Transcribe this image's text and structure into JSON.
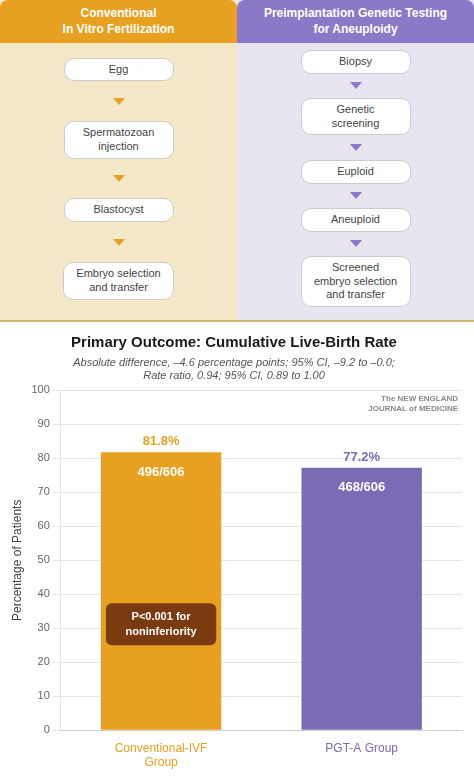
{
  "illustration": {
    "panels": [
      {
        "title": "Conventional\nIn Vitro Fertilization",
        "color": "#E8A020",
        "background": "#F5E8C8",
        "steps": [
          "Egg",
          "Spermatozoan\ninjection",
          "Blastocyst",
          "Embryo selection\nand transfer"
        ]
      },
      {
        "title": "Preimplantation Genetic Testing\nfor Aneuploidy",
        "color": "#8B78C8",
        "background": "#E8E4F0",
        "steps": [
          "Biopsy",
          "Genetic\nscreening",
          "Euploid",
          "Aneuploid",
          "Screened\nembryo selection\nand transfer"
        ]
      }
    ]
  },
  "chart_data": {
    "type": "bar",
    "title": "Primary Outcome: Cumulative Live-Birth Rate",
    "subtitle": [
      "Absolute difference, –4.6 percentage points; 95% CI, –9.2 to –0.0;",
      "Rate ratio, 0.94; 95% CI, 0.89 to 1.00"
    ],
    "categories": [
      "Conventional-IVF\nGroup",
      "PGT-A Group"
    ],
    "values": [
      81.8,
      77.2
    ],
    "value_labels": [
      "81.8%",
      "77.2%"
    ],
    "fractions": [
      "496/606",
      "468/606"
    ],
    "colors": [
      "#E8A020",
      "#7B6BB5"
    ],
    "data_labels": true,
    "ylabel": "Percentage of Patients",
    "ylim": [
      0,
      100
    ],
    "yticks": [
      0,
      10,
      20,
      30,
      40,
      50,
      60,
      70,
      80,
      90,
      100
    ],
    "grid": true,
    "annotations": [
      {
        "text": "P<0.001 for\nnoninferiority",
        "color": "#7A3B10"
      },
      {
        "text": "The NEW ENGLAND\nJOURNAL of MEDICINE",
        "color": "#888888"
      }
    ]
  }
}
